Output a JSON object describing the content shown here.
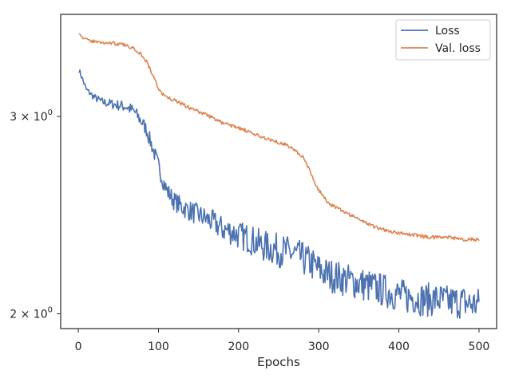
{
  "chart_data": {
    "type": "line",
    "xlabel": "Epochs",
    "ylabel": "",
    "xlim": [
      -22,
      522
    ],
    "ylim": [
      1.94,
      3.7
    ],
    "yscale": "log",
    "grid": false,
    "legend_position": "top-right",
    "x_ticks": [
      0,
      100,
      200,
      300,
      400,
      500
    ],
    "x_tick_labels": [
      "0",
      "100",
      "200",
      "300",
      "400",
      "500"
    ],
    "y_ticks": [
      2,
      3
    ],
    "y_tick_labels": [
      "2 × 10⁰",
      "3 × 10⁰"
    ],
    "y_tick_base": [
      "2 × 10",
      "3 × 10"
    ],
    "y_tick_exp": [
      "0",
      "0"
    ],
    "series": [
      {
        "name": "Loss",
        "color": "#4c72b0",
        "x": [
          1,
          10,
          20,
          30,
          40,
          50,
          60,
          70,
          80,
          85,
          90,
          95,
          100,
          105,
          110,
          115,
          120,
          130,
          140,
          150,
          160,
          170,
          180,
          190,
          200,
          210,
          220,
          230,
          240,
          250,
          260,
          270,
          280,
          290,
          300,
          310,
          320,
          330,
          340,
          350,
          360,
          370,
          380,
          390,
          400,
          410,
          420,
          430,
          440,
          450,
          460,
          470,
          480,
          490,
          500
        ],
        "y": [
          3.3,
          3.17,
          3.12,
          3.09,
          3.08,
          3.07,
          3.06,
          3.03,
          2.96,
          2.92,
          2.85,
          2.78,
          2.71,
          2.64,
          2.58,
          2.55,
          2.52,
          2.49,
          2.47,
          2.45,
          2.43,
          2.41,
          2.38,
          2.37,
          2.35,
          2.34,
          2.32,
          2.3,
          2.29,
          2.28,
          2.27,
          2.26,
          2.24,
          2.22,
          2.19,
          2.17,
          2.16,
          2.15,
          2.14,
          2.13,
          2.12,
          2.11,
          2.1,
          2.09,
          2.08,
          2.07,
          2.07,
          2.06,
          2.06,
          2.06,
          2.05,
          2.05,
          2.05,
          2.04,
          2.04
        ]
      },
      {
        "name": "Val. loss",
        "color": "#dd8452",
        "x": [
          1,
          5,
          10,
          20,
          30,
          40,
          50,
          60,
          70,
          80,
          85,
          90,
          95,
          100,
          105,
          110,
          120,
          140,
          160,
          180,
          200,
          220,
          240,
          260,
          270,
          280,
          285,
          290,
          295,
          300,
          305,
          310,
          320,
          330,
          340,
          350,
          360,
          370,
          380,
          390,
          400,
          420,
          440,
          460,
          480,
          500
        ],
        "y": [
          3.57,
          3.53,
          3.51,
          3.5,
          3.49,
          3.49,
          3.48,
          3.47,
          3.45,
          3.4,
          3.36,
          3.3,
          3.24,
          3.18,
          3.14,
          3.12,
          3.1,
          3.05,
          3.01,
          2.96,
          2.93,
          2.89,
          2.86,
          2.83,
          2.8,
          2.76,
          2.72,
          2.67,
          2.62,
          2.58,
          2.55,
          2.52,
          2.49,
          2.47,
          2.45,
          2.43,
          2.41,
          2.39,
          2.38,
          2.37,
          2.36,
          2.35,
          2.34,
          2.34,
          2.33,
          2.33
        ]
      }
    ]
  }
}
